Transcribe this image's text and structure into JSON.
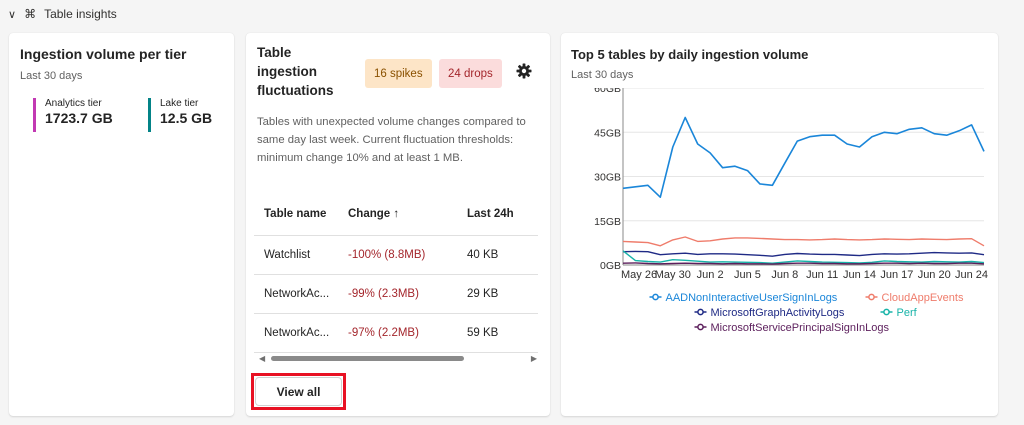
{
  "section": {
    "title": "Table insights",
    "chevron_icon": "chevron-down-icon",
    "icon": "insights-icon"
  },
  "card1": {
    "title": "Ingestion volume per tier",
    "subtitle": "Last 30 days",
    "tiers": [
      {
        "label": "Analytics tier",
        "value": "1723.7 GB",
        "color": "#c239b3"
      },
      {
        "label": "Lake tier",
        "value": "12.5 GB",
        "color": "#038387"
      }
    ]
  },
  "card2": {
    "title": "Table ingestion fluctuations",
    "spikes": "16 spikes",
    "drops": "24 drops",
    "settings_icon": "gear-icon",
    "description": "Tables with unexpected volume changes compared to same day last week. Current fluctuation thresholds: minimum change 10% and at least 1 MB.",
    "columns": [
      "Table name",
      "Change ↑",
      "Last 24h"
    ],
    "rows": [
      {
        "name": "Watchlist",
        "change": "-100% (8.8MB)",
        "last24h": "40 KB"
      },
      {
        "name": "NetworkAc...",
        "change": "-99% (2.3MB)",
        "last24h": "29 KB"
      },
      {
        "name": "NetworkAc...",
        "change": "-97% (2.2MB)",
        "last24h": "59 KB"
      }
    ],
    "view_all": "View all"
  },
  "card3": {
    "title": "Top 5 tables by daily ingestion volume",
    "subtitle": "Last 30 days"
  },
  "chart_data": {
    "type": "line",
    "title": "Top 5 tables by daily ingestion volume",
    "subtitle": "Last 30 days",
    "ylim": [
      0,
      60
    ],
    "yticks": [
      "0GB",
      "15GB",
      "30GB",
      "45GB",
      "60GB"
    ],
    "xticks": [
      "May 26",
      "May 30",
      "Jun 2",
      "Jun 5",
      "Jun 8",
      "Jun 11",
      "Jun 14",
      "Jun 17",
      "Jun 20",
      "Jun 24"
    ],
    "x": [
      "May 26",
      "May 27",
      "May 28",
      "May 29",
      "May 30",
      "May 31",
      "Jun 1",
      "Jun 2",
      "Jun 3",
      "Jun 4",
      "Jun 5",
      "Jun 6",
      "Jun 7",
      "Jun 8",
      "Jun 9",
      "Jun 10",
      "Jun 11",
      "Jun 12",
      "Jun 13",
      "Jun 14",
      "Jun 15",
      "Jun 16",
      "Jun 17",
      "Jun 18",
      "Jun 19",
      "Jun 20",
      "Jun 21",
      "Jun 22",
      "Jun 23",
      "Jun 24"
    ],
    "grid": true,
    "legend_position": "bottom",
    "series": [
      {
        "name": "AADNonInteractiveUserSignInLogs",
        "color": "#1a86d9",
        "values": [
          26,
          26.5,
          27,
          23,
          40,
          50,
          41,
          38,
          33,
          33.5,
          32,
          27.5,
          27,
          34.5,
          42,
          43.5,
          44,
          44,
          41,
          40,
          43.5,
          45,
          44.5,
          46,
          46.5,
          44.5,
          44,
          45.5,
          47.5,
          38.5
        ]
      },
      {
        "name": "CloudAppEvents",
        "color": "#ef7c6b",
        "values": [
          8,
          7.8,
          7.6,
          6.5,
          8.5,
          9.5,
          8,
          8.2,
          8.8,
          9.2,
          9.2,
          9,
          8.8,
          8.6,
          8.6,
          8.5,
          8.6,
          8.8,
          8.6,
          8.5,
          8.6,
          8.8,
          8.7,
          8.6,
          8.8,
          8.7,
          8.6,
          8.8,
          8.9,
          6.5
        ]
      },
      {
        "name": "MicrosoftGraphActivityLogs",
        "color": "#1f2a85",
        "values": [
          4.5,
          4.6,
          4.5,
          3.5,
          3.8,
          4.0,
          3.6,
          3.8,
          3.8,
          3.7,
          3.5,
          3.3,
          3.0,
          3.6,
          3.9,
          3.7,
          3.6,
          3.6,
          3.4,
          3.2,
          3.6,
          3.8,
          3.7,
          3.8,
          4.0,
          4.2,
          4.1,
          4.0,
          4.1,
          3.5
        ]
      },
      {
        "name": "Perf",
        "color": "#17b3a8",
        "values": [
          4.8,
          1.5,
          1.2,
          1.0,
          1.8,
          1.6,
          1.3,
          1.0,
          1.1,
          1.0,
          0.9,
          0.8,
          0.6,
          1.0,
          1.4,
          1.2,
          1.0,
          0.9,
          0.8,
          0.7,
          0.9,
          1.4,
          1.2,
          1.1,
          1.0,
          1.2,
          1.1,
          1.0,
          1.2,
          0.8
        ]
      },
      {
        "name": "MicrosoftServicePrincipalSignInLogs",
        "color": "#5c1f5c",
        "values": [
          0.6,
          0.7,
          0.5,
          0.4,
          0.5,
          0.6,
          0.5,
          0.5,
          0.4,
          0.5,
          0.4,
          0.4,
          0.3,
          0.5,
          0.6,
          0.6,
          0.5,
          0.5,
          0.4,
          0.4,
          0.5,
          0.6,
          0.6,
          0.5,
          0.6,
          0.5,
          0.5,
          0.6,
          0.6,
          0.4
        ]
      }
    ]
  }
}
